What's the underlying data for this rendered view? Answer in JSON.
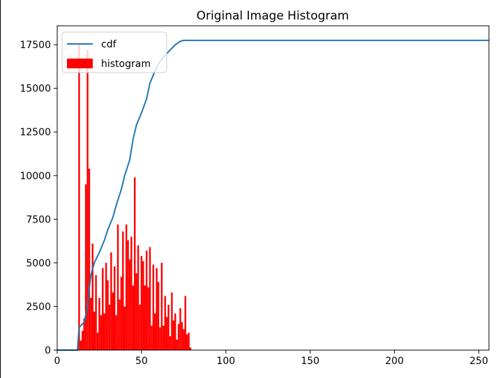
{
  "chart_data": {
    "type": "bar",
    "title": "Original Image Histogram",
    "xlabel": "",
    "ylabel": "",
    "xlim": [
      0,
      256
    ],
    "ylim": [
      0,
      18585
    ],
    "xticks": [
      0,
      50,
      100,
      150,
      200,
      250
    ],
    "yticks": [
      0,
      2500,
      5000,
      7500,
      10000,
      12500,
      15000,
      17500
    ],
    "legend_position": "upper-left",
    "grid": false,
    "colors": {
      "cdf": "#1f77b4",
      "histogram": "#ff0000"
    },
    "series": [
      {
        "name": "cdf",
        "type": "line",
        "x": [
          0,
          12,
          13,
          16,
          18,
          19,
          20,
          22,
          25,
          28,
          30,
          33,
          35,
          38,
          40,
          43,
          45,
          47,
          50,
          53,
          55,
          58,
          60,
          63,
          66,
          70,
          73,
          75,
          77,
          79,
          80,
          256
        ],
        "values": [
          0,
          0,
          1300,
          1600,
          2500,
          3500,
          4300,
          5000,
          5600,
          6300,
          6900,
          7600,
          8300,
          9200,
          10000,
          10900,
          12100,
          12900,
          13600,
          14400,
          15300,
          16000,
          16400,
          16800,
          17100,
          17500,
          17700,
          17750,
          17750,
          17750,
          17750,
          17750
        ]
      },
      {
        "name": "histogram",
        "type": "bar",
        "x": [
          13,
          14,
          15,
          16,
          17,
          18,
          19,
          20,
          21,
          22,
          23,
          24,
          25,
          26,
          27,
          28,
          29,
          30,
          31,
          32,
          33,
          34,
          35,
          36,
          37,
          38,
          39,
          40,
          41,
          42,
          43,
          44,
          45,
          46,
          47,
          48,
          49,
          50,
          51,
          52,
          53,
          54,
          55,
          56,
          57,
          58,
          59,
          60,
          61,
          62,
          63,
          64,
          65,
          66,
          67,
          68,
          69,
          70,
          71,
          72,
          73,
          74,
          75,
          76,
          77,
          78,
          79
        ],
        "values": [
          17500,
          550,
          1100,
          1800,
          9500,
          17200,
          10400,
          3000,
          6100,
          2200,
          4300,
          1000,
          3000,
          2000,
          4700,
          2100,
          5000,
          4000,
          2600,
          5600,
          3300,
          4800,
          2000,
          7200,
          2900,
          4200,
          6800,
          2500,
          7200,
          6300,
          5200,
          6500,
          3700,
          9900,
          4400,
          6000,
          2600,
          5400,
          5100,
          3700,
          5700,
          3600,
          5900,
          1400,
          4900,
          2100,
          4700,
          3900,
          1300,
          5000,
          1400,
          3100,
          1900,
          2600,
          800,
          3300,
          1700,
          2100,
          600,
          1500,
          2400,
          1600,
          1200,
          3100,
          900,
          1000,
          150
        ]
      }
    ]
  }
}
